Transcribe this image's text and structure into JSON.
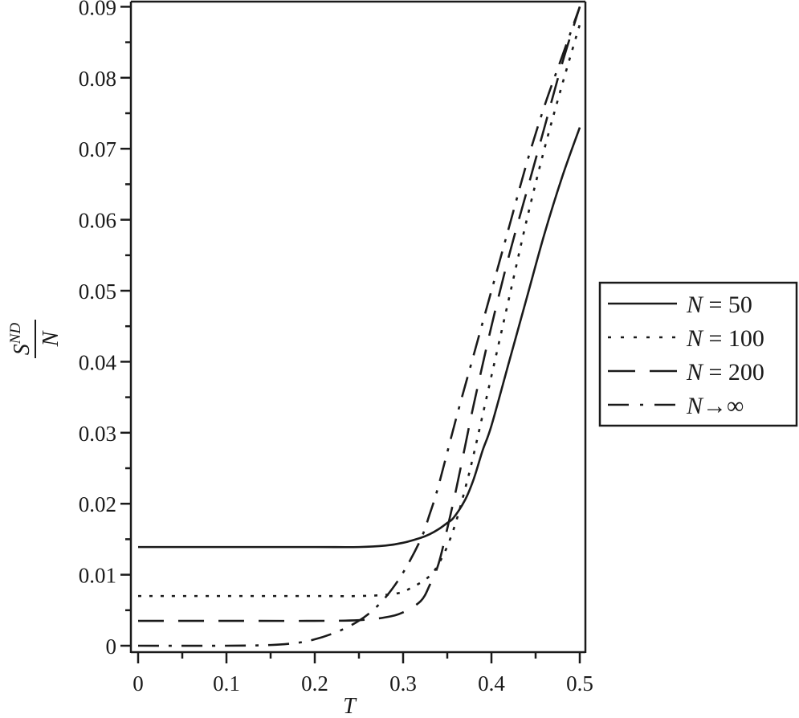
{
  "chart_data": {
    "type": "line",
    "title": "",
    "xlabel": "T",
    "ylabel": "S^{ND} / N",
    "ylabel_parts": {
      "numerator": "S",
      "superscript": "ND",
      "denominator": "N"
    },
    "xlim": [
      0,
      0.5
    ],
    "ylim": [
      0,
      0.09
    ],
    "x_ticks": [
      "0",
      "0.1",
      "0.2",
      "0.3",
      "0.4",
      "0.5"
    ],
    "x_tick_values": [
      0,
      0.1,
      0.2,
      0.3,
      0.4,
      0.5
    ],
    "y_ticks": [
      "0",
      "0.01",
      "0.02",
      "0.03",
      "0.04",
      "0.05",
      "0.06",
      "0.07",
      "0.08",
      "0.09"
    ],
    "y_tick_values": [
      0,
      0.01,
      0.02,
      0.03,
      0.04,
      0.05,
      0.06,
      0.07,
      0.08,
      0.09
    ],
    "grid": false,
    "legend_position": "right, outside plot",
    "series": [
      {
        "name": "N = 50",
        "style": "solid",
        "x": [
          0,
          0.1,
          0.2,
          0.25,
          0.28,
          0.3,
          0.32,
          0.33,
          0.34,
          0.35,
          0.357,
          0.37,
          0.38,
          0.39,
          0.4,
          0.42,
          0.44,
          0.46,
          0.48,
          0.5
        ],
        "y": [
          0.0139,
          0.0139,
          0.0139,
          0.0139,
          0.0141,
          0.0145,
          0.0152,
          0.0157,
          0.0164,
          0.0173,
          0.018,
          0.0205,
          0.0235,
          0.0275,
          0.031,
          0.04,
          0.049,
          0.058,
          0.066,
          0.073
        ]
      },
      {
        "name": "N = 100",
        "style": "dotted",
        "x": [
          0,
          0.1,
          0.2,
          0.25,
          0.29,
          0.31,
          0.33,
          0.34,
          0.35,
          0.36,
          0.37,
          0.38,
          0.4,
          0.42,
          0.44,
          0.46,
          0.48,
          0.5
        ],
        "y": [
          0.007,
          0.007,
          0.007,
          0.007,
          0.0073,
          0.0082,
          0.0098,
          0.0115,
          0.014,
          0.0175,
          0.022,
          0.027,
          0.038,
          0.049,
          0.06,
          0.07,
          0.079,
          0.0875
        ]
      },
      {
        "name": "N = 200",
        "style": "dashed",
        "x": [
          0,
          0.1,
          0.2,
          0.25,
          0.28,
          0.3,
          0.32,
          0.33,
          0.34,
          0.35,
          0.36,
          0.37,
          0.38,
          0.4,
          0.42,
          0.44,
          0.46,
          0.48,
          0.5
        ],
        "y": [
          0.0035,
          0.0035,
          0.0035,
          0.0036,
          0.004,
          0.0047,
          0.0063,
          0.0085,
          0.0115,
          0.0165,
          0.022,
          0.028,
          0.034,
          0.045,
          0.055,
          0.064,
          0.073,
          0.082,
          0.09
        ]
      },
      {
        "name": "N→∞",
        "style": "dashdot",
        "x": [
          0,
          0.1,
          0.15,
          0.18,
          0.2,
          0.22,
          0.24,
          0.26,
          0.28,
          0.3,
          0.32,
          0.33,
          0.34,
          0.36,
          0.38,
          0.4,
          0.42,
          0.44,
          0.46,
          0.48,
          0.5
        ],
        "y": [
          0,
          0,
          0.0001,
          0.0004,
          0.0009,
          0.0017,
          0.0028,
          0.0044,
          0.0068,
          0.0103,
          0.015,
          0.0185,
          0.0225,
          0.032,
          0.041,
          0.05,
          0.059,
          0.068,
          0.076,
          0.083,
          0.09
        ]
      }
    ]
  },
  "legend": {
    "items": [
      {
        "symbol": "N",
        "text": " = 50",
        "style": "solid"
      },
      {
        "symbol": "N",
        "text": " = 100",
        "style": "dotted"
      },
      {
        "symbol": "N",
        "text": " = 200",
        "style": "dashed"
      },
      {
        "symbol": "N",
        "text": "→∞",
        "style": "dashdot"
      }
    ]
  },
  "colors": {
    "line": "#1a1a1a",
    "background": "#ffffff"
  }
}
